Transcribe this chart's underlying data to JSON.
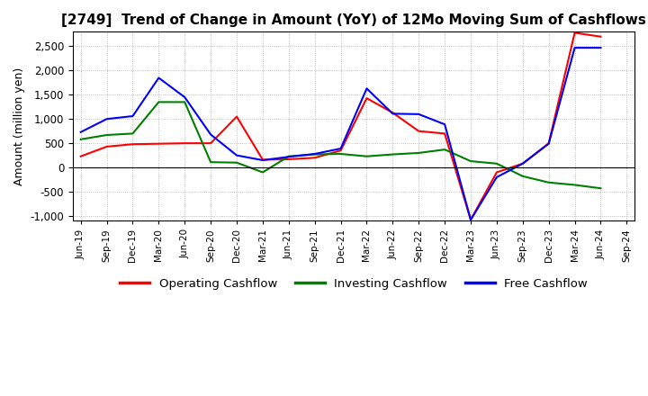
{
  "title": "[2749]  Trend of Change in Amount (YoY) of 12Mo Moving Sum of Cashflows",
  "ylabel": "Amount (million yen)",
  "ylim": [
    -1100,
    2800
  ],
  "yticks": [
    -1000,
    -500,
    0,
    500,
    1000,
    1500,
    2000,
    2500
  ],
  "x_labels": [
    "Jun-19",
    "Sep-19",
    "Dec-19",
    "Mar-20",
    "Jun-20",
    "Sep-20",
    "Dec-20",
    "Mar-21",
    "Jun-21",
    "Sep-21",
    "Dec-21",
    "Mar-22",
    "Jun-22",
    "Sep-22",
    "Dec-22",
    "Mar-23",
    "Jun-23",
    "Sep-23",
    "Dec-23",
    "Mar-24",
    "Jun-24",
    "Sep-24"
  ],
  "operating": [
    230,
    430,
    480,
    490,
    500,
    500,
    1050,
    160,
    170,
    200,
    350,
    1430,
    1130,
    750,
    700,
    -1080,
    -100,
    80,
    500,
    2780,
    2700,
    null
  ],
  "investing": [
    580,
    670,
    700,
    1350,
    1350,
    110,
    100,
    -100,
    230,
    270,
    280,
    230,
    270,
    300,
    370,
    130,
    80,
    -180,
    -310,
    -360,
    -430,
    null
  ],
  "free": [
    730,
    1000,
    1060,
    1850,
    1450,
    680,
    250,
    150,
    220,
    280,
    390,
    1630,
    1110,
    1100,
    890,
    -1080,
    -200,
    80,
    490,
    2470,
    2470,
    null
  ],
  "line_colors": {
    "operating": "#ff0000",
    "investing": "#008000",
    "free": "#0000ff"
  },
  "legend_labels": [
    "Operating Cashflow",
    "Investing Cashflow",
    "Free Cashflow"
  ],
  "background_color": "#ffffff",
  "grid_color": "#aaaaaa",
  "title_fontsize": 11,
  "label_fontsize": 9
}
